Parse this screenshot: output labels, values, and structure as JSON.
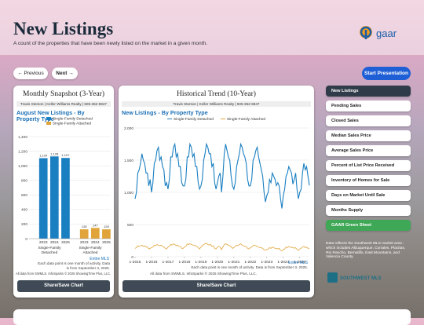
{
  "header": {
    "title": "New Listings",
    "subtitle": "A count of the properties that have been newly listed on the market in a given month.",
    "logo": "gaar"
  },
  "nav": {
    "previous": "← Previous",
    "next": "Next →",
    "start": "Start Presentation"
  },
  "snapshot": {
    "title": "Monthly Snapshot (3-Year)",
    "agent": "Travis Sterson | Keller Williams Realty | 505-362-6947",
    "chart": {
      "type": "bar",
      "title": "August New Listings - By Property Type",
      "categories": [
        "2023",
        "2024",
        "2025"
      ],
      "series": [
        {
          "name": "Single-Family Detached",
          "color": "#1a7fc1",
          "values": [
            1104,
            1128,
            1107
          ],
          "value_labels": [
            "1,104",
            "1,128",
            "1,107"
          ]
        },
        {
          "name": "Single-Family Attached",
          "color": "#e0a43a",
          "values": [
            128,
            147,
            128
          ]
        }
      ],
      "ylim": [
        0,
        1400
      ],
      "yticks": [
        0,
        200,
        400,
        600,
        800,
        {
          "value": 1000,
          "label": "1,000"
        },
        {
          "value": 1200,
          "label": "1,200"
        },
        {
          "value": 1400,
          "label": "1,400"
        }
      ],
      "source": "Entire MLS",
      "note": "Each data point is one month of activity. Data is from September 3, 2025.",
      "credit": "All data from SWMLS. InfoSparks © 2025 ShowingTime Plus, LLC."
    },
    "button": "Share/Save Chart"
  },
  "trend": {
    "title": "Historical Trend (10-Year)",
    "agent": "Travis Sterson | Keller Williams Realty | 505-362-6947",
    "chart": {
      "type": "line",
      "title": "New Listings - By Property Type",
      "x": [
        "1-2015",
        "2-2015",
        "3-2015",
        "4-2015",
        "5-2015",
        "6-2015",
        "7-2015",
        "8-2015",
        "9-2015",
        "10-2015",
        "11-2015",
        "12-2015",
        "1-2016",
        "2-2016",
        "3-2016",
        "4-2016",
        "5-2016",
        "6-2016",
        "7-2016",
        "8-2016",
        "9-2016",
        "10-2016",
        "11-2016",
        "12-2016",
        "1-2017",
        "2-2017",
        "3-2017",
        "4-2017",
        "5-2017",
        "6-2017",
        "7-2017",
        "8-2017",
        "9-2017",
        "10-2017",
        "11-2017",
        "12-2017",
        "1-2018",
        "2-2018",
        "3-2018",
        "4-2018",
        "5-2018",
        "6-2018",
        "7-2018",
        "8-2018",
        "9-2018",
        "10-2018",
        "11-2018",
        "12-2018",
        "1-2019",
        "2-2019",
        "3-2019",
        "4-2019",
        "5-2019",
        "6-2019",
        "7-2019",
        "8-2019",
        "9-2019",
        "10-2019",
        "11-2019",
        "12-2019",
        "1-2020",
        "2-2020",
        "3-2020",
        "4-2020",
        "5-2020",
        "6-2020",
        "7-2020",
        "8-2020",
        "9-2020",
        "10-2020",
        "11-2020",
        "12-2020",
        "1-2021",
        "2-2021",
        "3-2021",
        "4-2021",
        "5-2021",
        "6-2021",
        "7-2021",
        "8-2021",
        "9-2021",
        "10-2021",
        "11-2021",
        "12-2021",
        "1-2022",
        "2-2022",
        "3-2022",
        "4-2022",
        "5-2022",
        "6-2022",
        "7-2022",
        "8-2022",
        "9-2022",
        "10-2022",
        "11-2022",
        "12-2022",
        "1-2023",
        "2-2023",
        "3-2023",
        "4-2023",
        "5-2023",
        "6-2023",
        "7-2023",
        "8-2023",
        "9-2023",
        "10-2023",
        "11-2023",
        "12-2023",
        "1-2024",
        "2-2024",
        "3-2024",
        "4-2024",
        "5-2024",
        "6-2024",
        "7-2024",
        "8-2024",
        "9-2024",
        "10-2024",
        "11-2024",
        "12-2024",
        "1-2025",
        "2-2025",
        "3-2025",
        "4-2025",
        "5-2025",
        "6-2025",
        "7-2025",
        "8-2025"
      ],
      "xticks": [
        "1-2015",
        "1-2016",
        "1-2017",
        "1-2018",
        "1-2019",
        "1-2020",
        "1-2021",
        "1-2022",
        "1-2023",
        "1-2024",
        "1-2025"
      ],
      "series": [
        {
          "name": "Single-Family Detached",
          "color": "#1a7fc1",
          "values": [
            900,
            1000,
            1300,
            1350,
            1450,
            1600,
            1500,
            1450,
            1300,
            1300,
            1100,
            1200,
            1000,
            1150,
            1450,
            1500,
            1650,
            1700,
            1500,
            1550,
            1400,
            1350,
            1100,
            1150,
            1050,
            1200,
            1550,
            1550,
            1700,
            1750,
            1550,
            1600,
            1400,
            1400,
            1150,
            1100,
            1100,
            1200,
            1550,
            1550,
            1750,
            1700,
            1550,
            1600,
            1400,
            1400,
            1150,
            1050,
            1100,
            1200,
            1500,
            1600,
            1750,
            1700,
            1600,
            1600,
            1400,
            1450,
            1150,
            1050,
            1150,
            1250,
            1300,
            1000,
            1250,
            1600,
            1750,
            1650,
            1550,
            1500,
            1250,
            1100,
            1050,
            1150,
            1400,
            1500,
            1600,
            1750,
            1700,
            1600,
            1550,
            1450,
            1200,
            1100,
            1100,
            1200,
            1500,
            1550,
            1650,
            1700,
            1550,
            1450,
            1350,
            1250,
            1000,
            850,
            950,
            1000,
            1200,
            1150,
            1300,
            1250,
            1200,
            1104,
            1150,
            1100,
            900,
            750,
            950,
            1050,
            1250,
            1300,
            1400,
            1350,
            1300,
            1128,
            1200,
            1300,
            1050,
            900,
            1000,
            1050,
            1300,
            1450,
            1350,
            1400,
            1250,
            1107
          ]
        },
        {
          "name": "Single-Family Attached",
          "color": "#e0a43a",
          "values": [
            130,
            140,
            170,
            160,
            170,
            180,
            160,
            170,
            150,
            150,
            120,
            130,
            140,
            150,
            180,
            170,
            190,
            180,
            170,
            180,
            160,
            150,
            130,
            120,
            150,
            160,
            190,
            180,
            200,
            190,
            170,
            180,
            160,
            160,
            130,
            130,
            150,
            160,
            200,
            190,
            200,
            190,
            180,
            180,
            170,
            160,
            140,
            120,
            150,
            170,
            190,
            200,
            210,
            190,
            180,
            190,
            160,
            170,
            130,
            120,
            150,
            160,
            150,
            110,
            150,
            190,
            200,
            190,
            180,
            170,
            150,
            130,
            140,
            160,
            180,
            170,
            190,
            200,
            180,
            170,
            160,
            160,
            130,
            120,
            140,
            150,
            170,
            180,
            170,
            160,
            150,
            140,
            140,
            130,
            110,
            100,
            110,
            120,
            140,
            130,
            150,
            140,
            130,
            128,
            120,
            130,
            100,
            90,
            110,
            120,
            150,
            140,
            160,
            150,
            140,
            147,
            130,
            140,
            110,
            100,
            120,
            130,
            150,
            160,
            140,
            150,
            130,
            128
          ]
        }
      ],
      "ylim": [
        0,
        2000
      ],
      "yticks": [
        0,
        500,
        {
          "value": 1000,
          "label": "1,000"
        },
        {
          "value": 1500,
          "label": "1,500"
        },
        {
          "value": 2000,
          "label": "2,000"
        }
      ],
      "source": "Entire MLS",
      "note": "Each data point is one month of activity. Data is from September 3, 2025.",
      "credit": "All data from SWMLS. InfoSparks © 2025 ShowingTime Plus, LLC."
    },
    "button": "Share/Save Chart"
  },
  "menu": [
    "New Listings",
    "Pending Sales",
    "Closed Sales",
    "Median Sales Price",
    "Average Sales Price",
    "Percent of List Price Received",
    "Inventory of Homes for Sale",
    "Days on Market Until Sale",
    "Months Supply",
    "GAAR Green Sheet"
  ],
  "description": "Data reflects the Southwest MLS market area - which includes Albuquerque, Corrales, Placitas, Rio Rancho, Bernalillo, East Mountains, and Valencia County.",
  "swmls": "SOUTHWEST MLS"
}
